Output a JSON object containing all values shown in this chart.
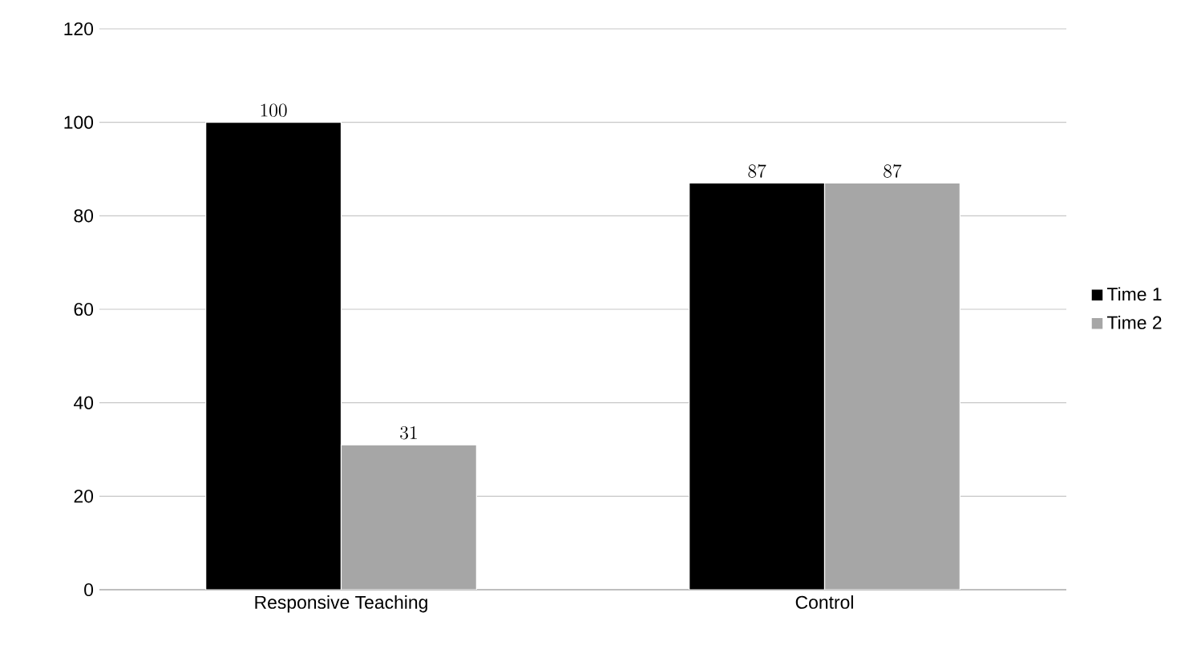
{
  "chart_data": {
    "type": "bar",
    "categories": [
      "Responsive Teaching",
      "Control"
    ],
    "series": [
      {
        "name": "Time 1",
        "color": "#000000",
        "values": [
          100,
          87
        ]
      },
      {
        "name": "Time 2",
        "color": "#a6a6a6",
        "values": [
          31,
          87
        ]
      }
    ],
    "ylim": [
      0,
      120
    ],
    "yticks": [
      0,
      20,
      40,
      60,
      80,
      100,
      120
    ],
    "grid": "y",
    "legend": "right",
    "data_labels": true
  }
}
